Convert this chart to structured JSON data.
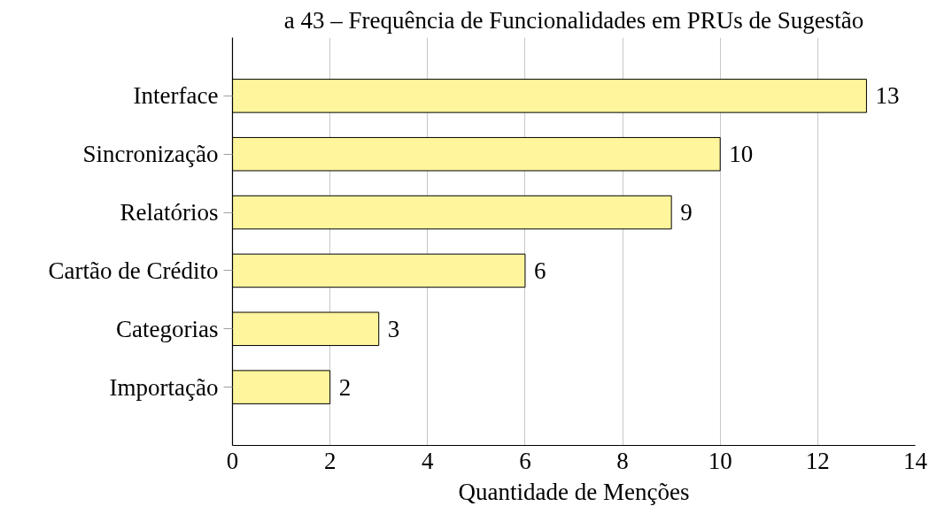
{
  "chart_data": {
    "type": "bar",
    "orientation": "horizontal",
    "title": "a 43 – Frequência de Funcionalidades em PRUs de Sugestão",
    "categories": [
      "Interface",
      "Sincronização",
      "Relatórios",
      "Cartão de Crédito",
      "Categorias",
      "Importação"
    ],
    "values": [
      13,
      10,
      9,
      6,
      3,
      2
    ],
    "color": "#fff59d",
    "xlabel": "Quantidade de Menções",
    "xlim": [
      0,
      14
    ],
    "xticks": [
      0,
      2,
      4,
      6,
      8,
      10,
      12,
      14
    ],
    "grid": "x",
    "data_labels": true
  }
}
